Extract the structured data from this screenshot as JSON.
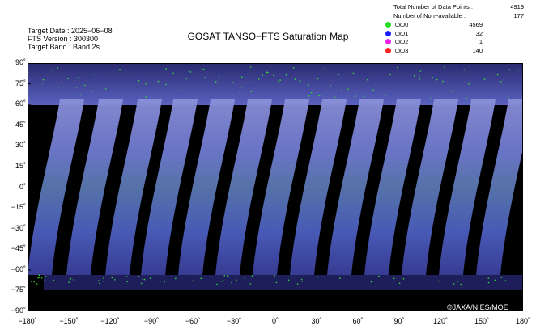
{
  "title": "GOSAT TANSO−FTS Saturation Map",
  "meta": {
    "target_date": "Target Date : 2025−06−08",
    "fts_version": "FTS Version : 300300",
    "target_band": "Target Band : Band 2s"
  },
  "stats": {
    "total_label": "Total Number of Data Points :",
    "total_value": "4919",
    "nonavail_label": "Number of Non−available :",
    "nonavail_value": "177"
  },
  "legend": [
    {
      "code": "0x00 :",
      "value": "4569",
      "color": "#22dd22"
    },
    {
      "code": "0x01 :",
      "value": "32",
      "color": "#1a1aff"
    },
    {
      "code": "0x02 :",
      "value": "1",
      "color": "#ee22ee"
    },
    {
      "code": "0x03 :",
      "value": "140",
      "color": "#ff2222"
    }
  ],
  "axes": {
    "y_ticks": [
      "90˚",
      "75˚",
      "60˚",
      "45˚",
      "30˚",
      "15˚",
      "0˚",
      "−15˚",
      "−30˚",
      "−45˚",
      "−60˚",
      "−75˚",
      "−90˚"
    ],
    "x_ticks": [
      "−180˚",
      "−150˚",
      "−120˚",
      "−90˚",
      "−60˚",
      "−30˚",
      "0˚",
      "30˚",
      "60˚",
      "90˚",
      "120˚",
      "150˚",
      "180˚"
    ],
    "lon_range": [
      -180,
      180
    ],
    "lat_range": [
      -90,
      90
    ]
  },
  "copyright": "©JAXA/NIES/MOE"
}
